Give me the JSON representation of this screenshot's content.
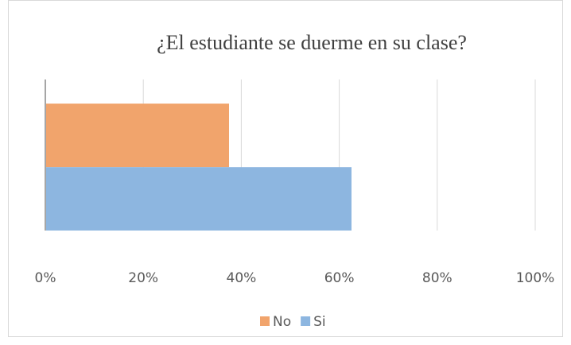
{
  "chart_data": {
    "type": "hbar",
    "title": "¿El estudiante se duerme en su clase?",
    "categories": [
      null
    ],
    "series": [
      {
        "name": "No",
        "color": "#f1a46c",
        "values": [
          37.5
        ]
      },
      {
        "name": "Si",
        "color": "#8db6e0",
        "values": [
          62.5
        ]
      }
    ],
    "xlim": [
      0,
      100
    ],
    "xticks": [
      {
        "value": 0,
        "label": "0%"
      },
      {
        "value": 20,
        "label": "20%"
      },
      {
        "value": 40,
        "label": "40%"
      },
      {
        "value": 60,
        "label": "60%"
      },
      {
        "value": 80,
        "label": "80%"
      },
      {
        "value": 100,
        "label": "100%"
      }
    ],
    "grid": true,
    "legend": "bottom"
  }
}
